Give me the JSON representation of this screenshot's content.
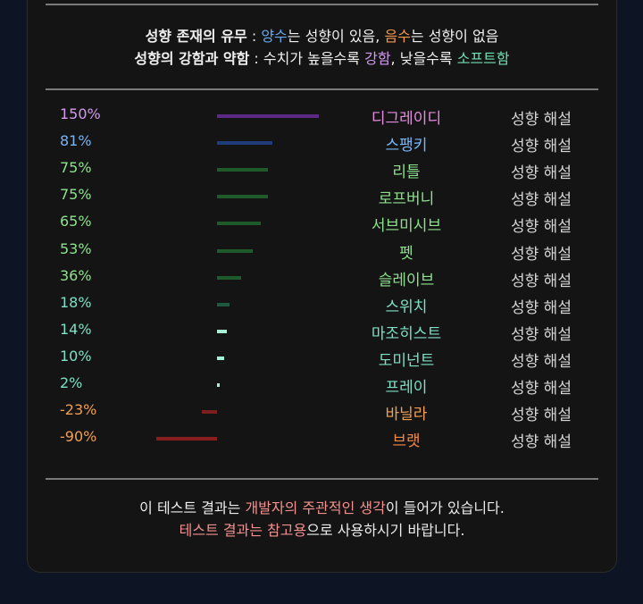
{
  "legend": {
    "l1_title": "성향 존재의 유무",
    "l1_sep": " : ",
    "l1_pos": "양수",
    "l1_pos_text": "는 성향이 있음, ",
    "l1_neg": "음수",
    "l1_neg_text": "는 성향이 없음",
    "l2_title": "성향의 강함과 약함",
    "l2_sep": " : 수치가 높을수록 ",
    "l2_strong": "강함",
    "l2_mid": ", 낮을수록 ",
    "l2_soft": "소프트함"
  },
  "results": [
    {
      "percent": "150%",
      "value": 150,
      "name": "디그레이디",
      "pct_color": "#d39af0",
      "name_color": "#e58ce0",
      "bar_color": "#5c2a86",
      "desc": "성향 해설"
    },
    {
      "percent": "81%",
      "value": 81,
      "name": "스팽키",
      "pct_color": "#7ab4f5",
      "name_color": "#78b8f8",
      "bar_color": "#1f3d7a",
      "desc": "성향 해설"
    },
    {
      "percent": "75%",
      "value": 75,
      "name": "리틀",
      "pct_color": "#8ee28e",
      "name_color": "#8ee28e",
      "bar_color": "#1f5a2a",
      "desc": "성향 해설"
    },
    {
      "percent": "75%",
      "value": 75,
      "name": "로프버니",
      "pct_color": "#8ee28e",
      "name_color": "#8ee28e",
      "bar_color": "#1f5a2a",
      "desc": "성향 해설"
    },
    {
      "percent": "65%",
      "value": 65,
      "name": "서브미시브",
      "pct_color": "#8ee28e",
      "name_color": "#8ee28e",
      "bar_color": "#1f5a2a",
      "desc": "성향 해설"
    },
    {
      "percent": "53%",
      "value": 53,
      "name": "펫",
      "pct_color": "#8ee28e",
      "name_color": "#8ee28e",
      "bar_color": "#1f5a2a",
      "desc": "성향 해설"
    },
    {
      "percent": "36%",
      "value": 36,
      "name": "슬레이브",
      "pct_color": "#8ee28e",
      "name_color": "#8ee28e",
      "bar_color": "#1f5a2a",
      "desc": "성향 해설"
    },
    {
      "percent": "18%",
      "value": 18,
      "name": "스위치",
      "pct_color": "#7ee0c4",
      "name_color": "#7ee0c4",
      "bar_color": "#1f5a40",
      "desc": "성향 해설"
    },
    {
      "percent": "14%",
      "value": 14,
      "name": "마조히스트",
      "pct_color": "#7ee0c4",
      "name_color": "#7ee0c4",
      "bar_color": "#a6f0d6",
      "desc": "성향 해설"
    },
    {
      "percent": "10%",
      "value": 10,
      "name": "도미넌트",
      "pct_color": "#7ee0c4",
      "name_color": "#7ee0c4",
      "bar_color": "#a6f0d6",
      "desc": "성향 해설"
    },
    {
      "percent": "2%",
      "value": 2,
      "name": "프레이",
      "pct_color": "#7ee0c4",
      "name_color": "#7ee0c4",
      "bar_color": "#a6f0d6",
      "desc": "성향 해설"
    },
    {
      "percent": "-23%",
      "value": -23,
      "name": "바닐라",
      "pct_color": "#f0a055",
      "name_color": "#f0a055",
      "bar_color": "#7a1e1e",
      "desc": "성향 해설"
    },
    {
      "percent": "-90%",
      "value": -90,
      "name": "브랫",
      "pct_color": "#f0a055",
      "name_color": "#f08a4a",
      "bar_color": "#8a1e1e",
      "desc": "성향 해설"
    }
  ],
  "footer": {
    "line1_a": "이 테스트 결과는 ",
    "line1_hl": "개발자의 주관적인 생각",
    "line1_b": "이 들어가 있습니다.",
    "line2_hl": "테스트 결과는 참고용",
    "line2_b": "으로 사용하시기 바랍니다."
  }
}
